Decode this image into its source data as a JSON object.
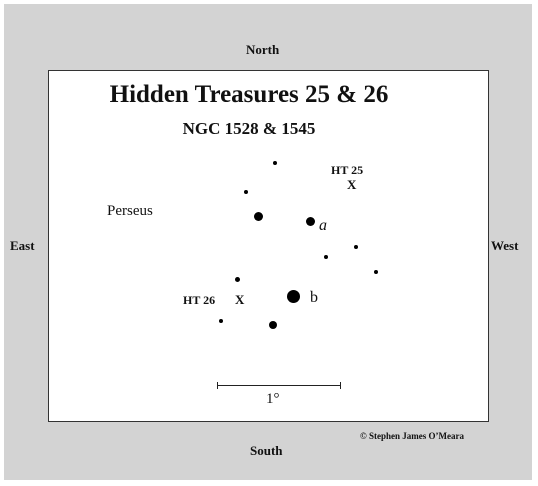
{
  "directions": {
    "north": "North",
    "south": "South",
    "east": "East",
    "west": "West"
  },
  "chart": {
    "title": "Hidden Treasures 25 & 26",
    "subtitle": "NGC 1528 & 1545",
    "constellation": "Perseus",
    "ht25_label": "HT  25",
    "ht25_marker": "X",
    "ht26_label": "HT  26",
    "ht26_marker": "X",
    "star_a": "a",
    "star_b": "b",
    "scale_label": "1°",
    "credit": "© Stephen James O’Meara"
  }
}
